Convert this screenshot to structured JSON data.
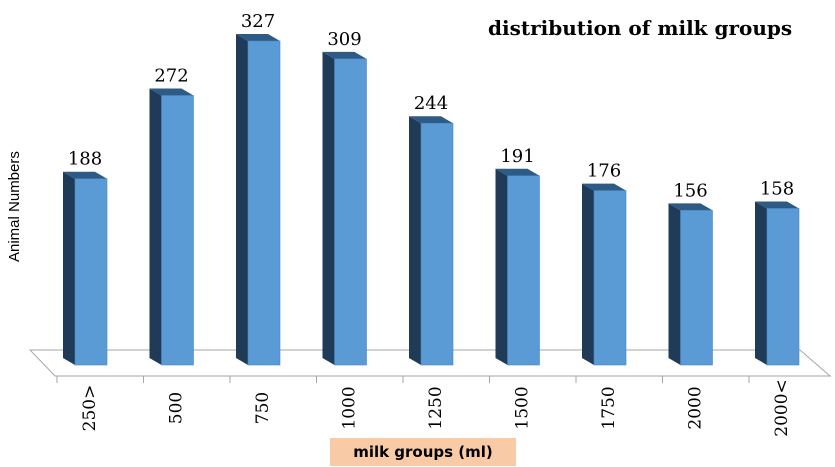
{
  "chart_data": {
    "type": "bar",
    "title": "distribution of milk groups",
    "xlabel": "milk groups (ml)",
    "ylabel": "Animal Numbers",
    "categories": [
      "250>",
      "500",
      "750",
      "1000",
      "1250",
      "1500",
      "1750",
      "2000",
      "2000<"
    ],
    "values": [
      188,
      272,
      327,
      309,
      244,
      191,
      176,
      156,
      158
    ],
    "data_labels": [
      "188",
      "272",
      "327",
      "309",
      "244",
      "191",
      "176",
      "156",
      "158"
    ],
    "ylim": [
      0,
      327
    ],
    "grid": false,
    "legend": "none",
    "style": "3d",
    "colors": {
      "bar_front": "#5b9bd5",
      "bar_side": "#1f3b57",
      "bar_top": "#2e5a86",
      "floor": "#ffffff",
      "floor_edge": "#a6a6a6",
      "xlabel_background": "#f8cba6"
    }
  }
}
